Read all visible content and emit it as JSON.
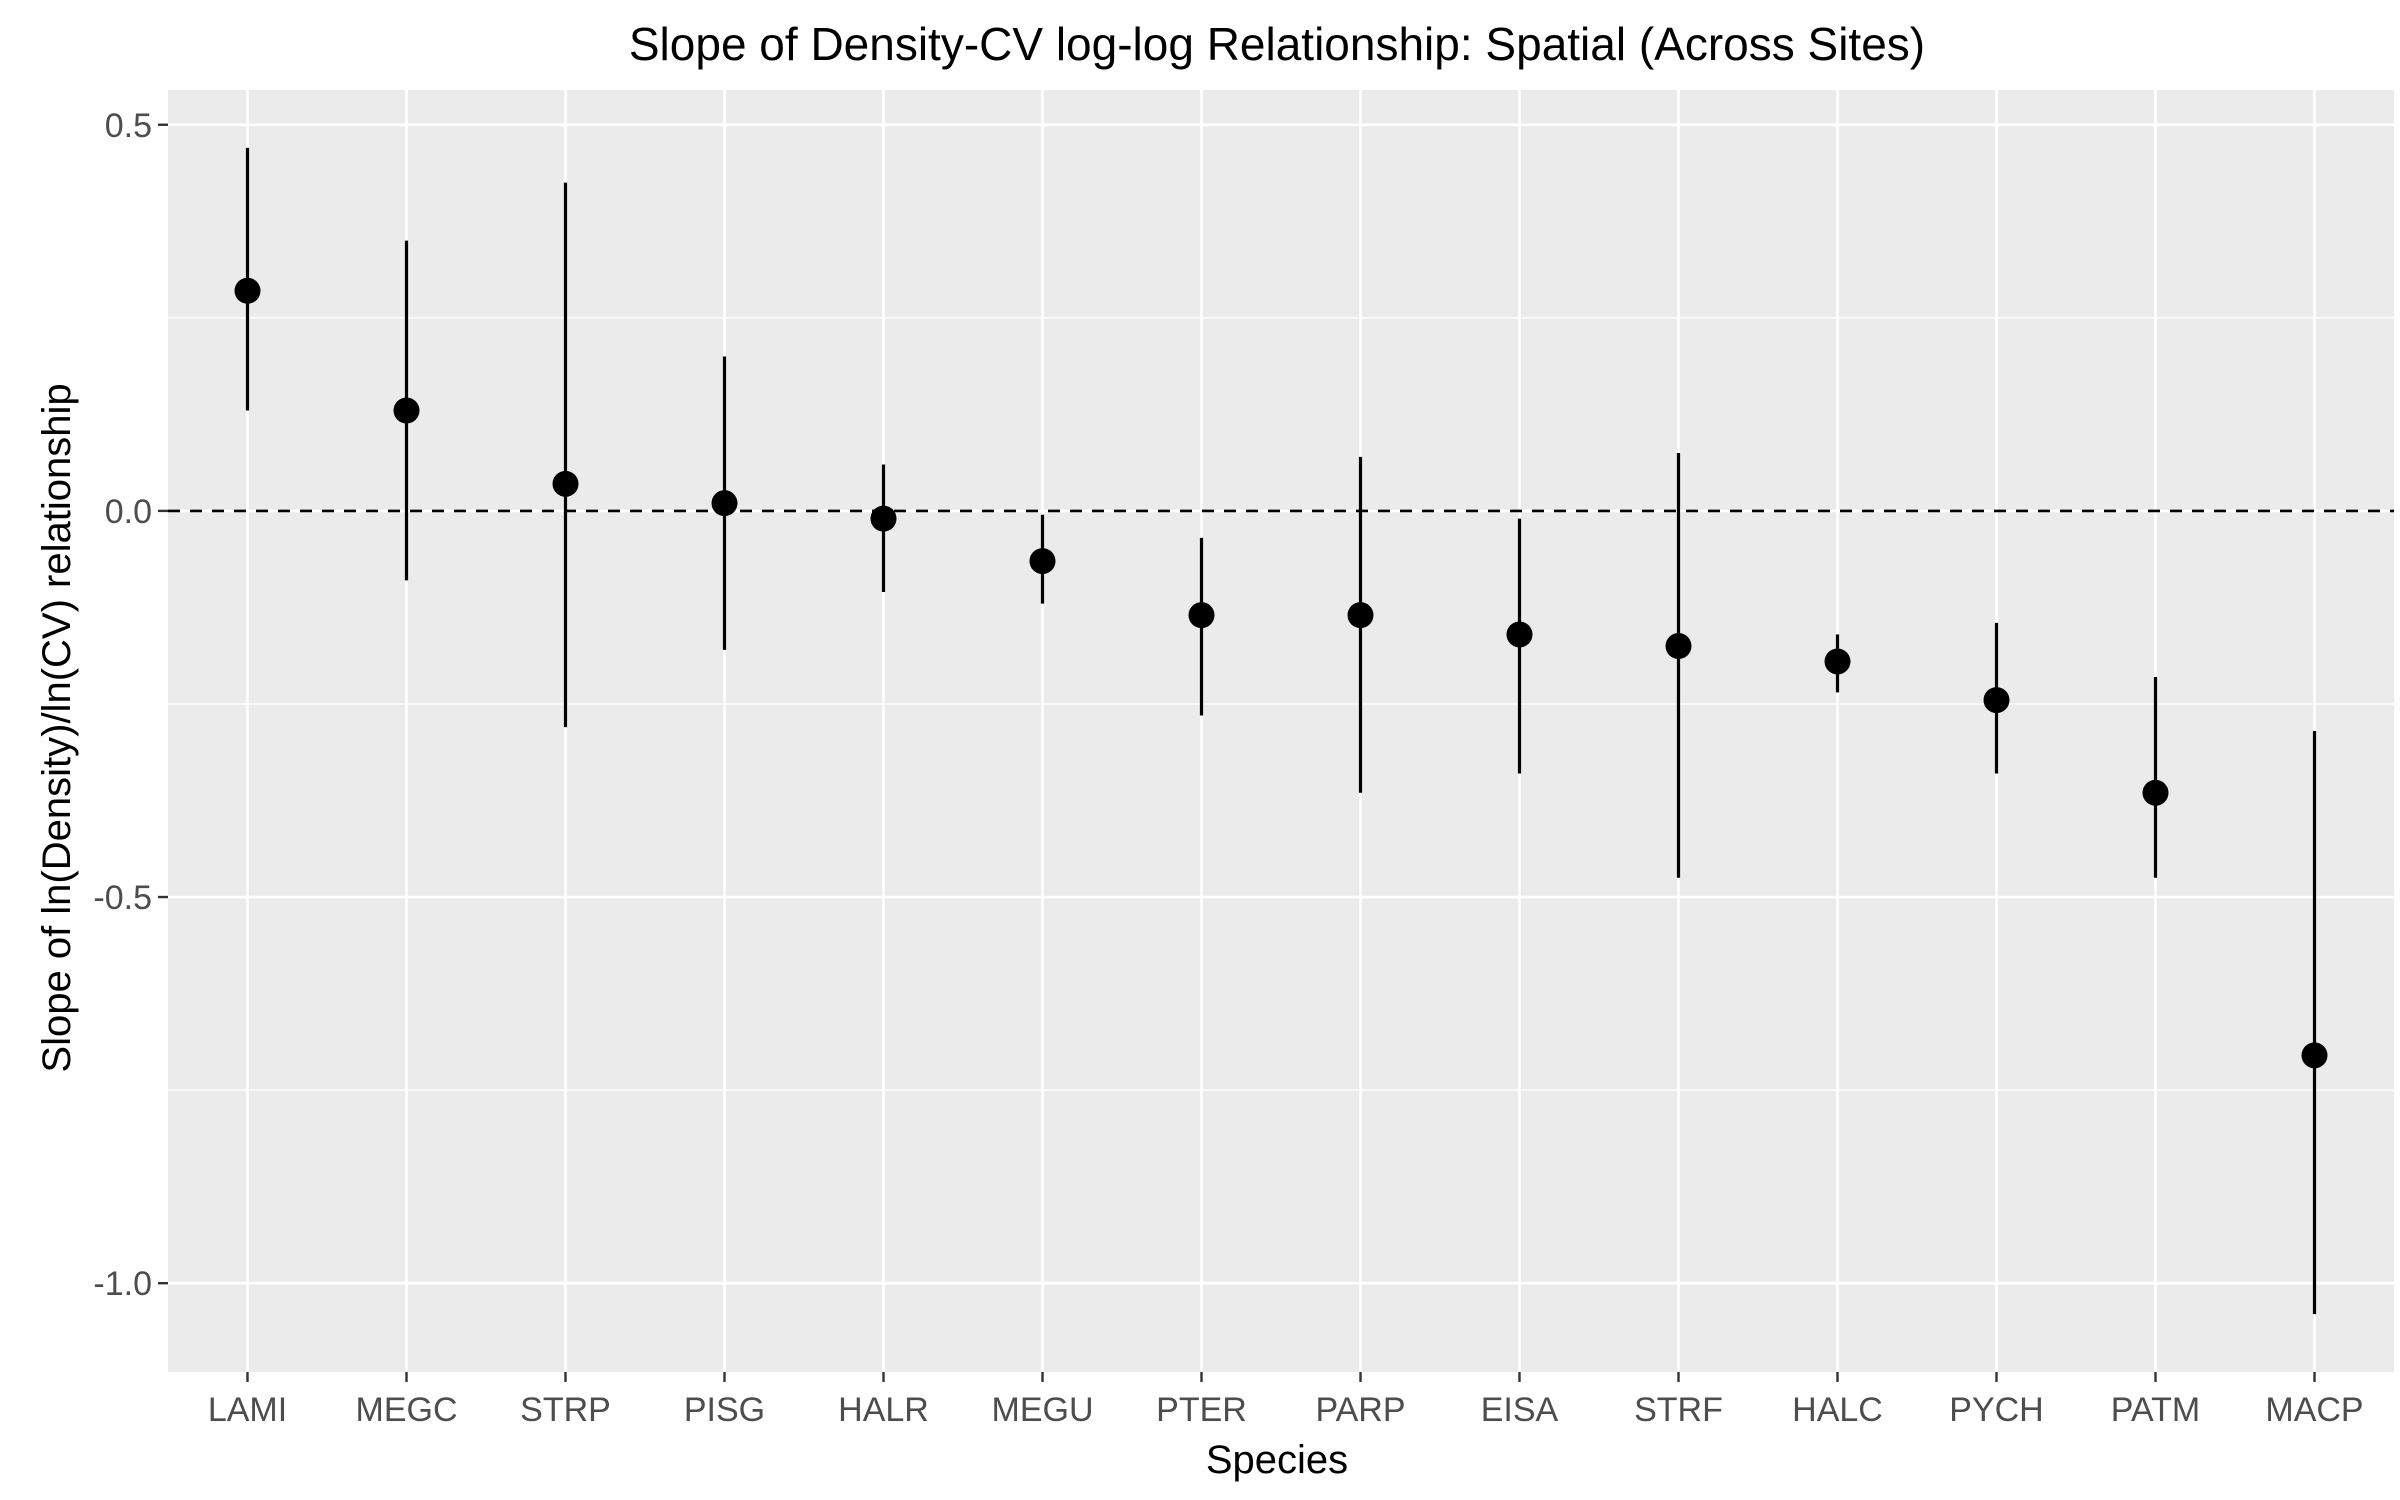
{
  "chart_data": {
    "type": "scatter",
    "title": "Slope of Density-CV log-log Relationship: Spatial (Across Sites)",
    "xlabel": "Species",
    "ylabel": "Slope of ln(Density)/ln(CV) relationship",
    "categories": [
      "LAMI",
      "MEGC",
      "STRP",
      "PISG",
      "HALR",
      "MEGU",
      "PTER",
      "PARP",
      "EISA",
      "STRF",
      "HALC",
      "PYCH",
      "PATM",
      "MACP"
    ],
    "series": [
      {
        "values": [
          0.285,
          0.13,
          0.035,
          0.01,
          -0.01,
          -0.065,
          -0.135,
          -0.135,
          -0.16,
          -0.175,
          -0.195,
          -0.245,
          -0.365,
          -0.705
        ],
        "lower": [
          0.13,
          -0.09,
          -0.28,
          -0.18,
          -0.105,
          -0.12,
          -0.265,
          -0.365,
          -0.34,
          -0.475,
          -0.235,
          -0.34,
          -0.475,
          -1.04
        ],
        "upper": [
          0.47,
          0.35,
          0.425,
          0.2,
          0.06,
          -0.005,
          -0.035,
          0.07,
          -0.01,
          0.075,
          -0.16,
          -0.145,
          -0.215,
          -0.285
        ]
      }
    ],
    "ylim": [
      -1.115,
      0.545
    ],
    "yticks": [
      0.5,
      0.0,
      -0.5,
      -1.0
    ],
    "ytick_labels": [
      "0.5",
      "0.0",
      "-0.5",
      "-1.0"
    ],
    "reference_line": {
      "y": 0,
      "style": "dashed"
    },
    "grid": true,
    "colors": {
      "panel": "#ebebeb",
      "grid": "#ffffff",
      "point": "#000000",
      "tick_text": "#4d4d4d"
    }
  }
}
